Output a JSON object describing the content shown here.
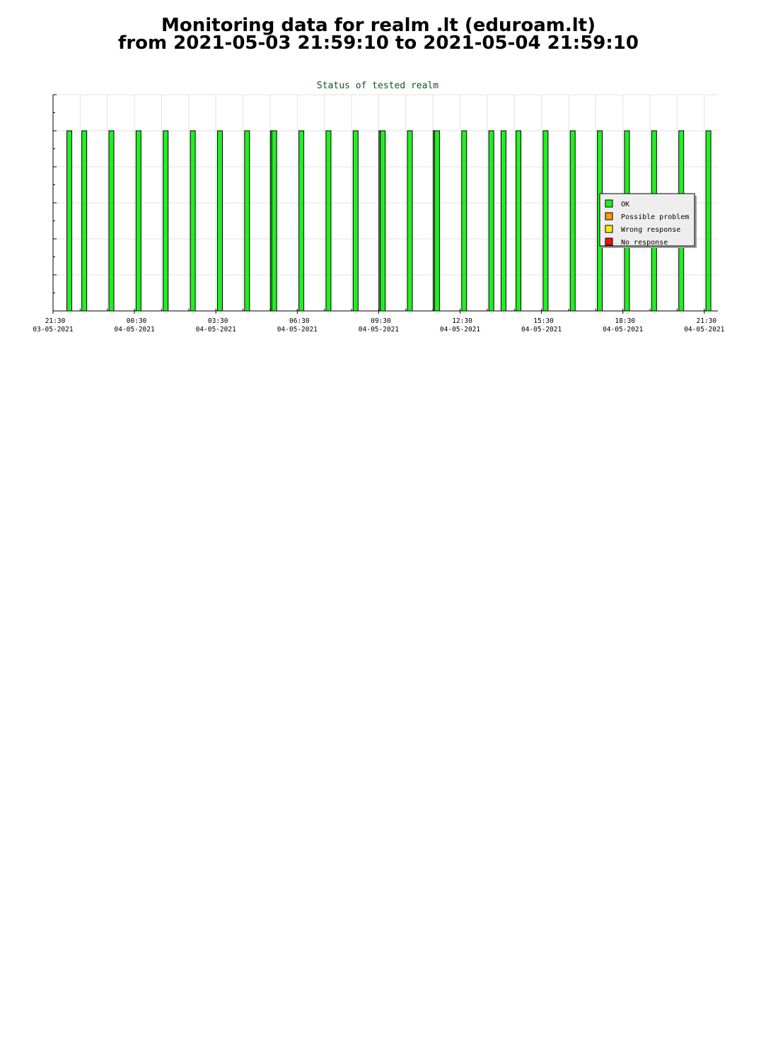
{
  "page": {
    "title_line1": "Monitoring data for realm .lt  (eduroam.lt)",
    "title_line2": "from 2021-05-03 21:59:10 to 2021-05-04 21:59:10"
  },
  "chart_data": {
    "type": "bar",
    "title": "Status of tested realm",
    "xlabel": "",
    "ylabel": "",
    "x_unit": "hours since 2021-05-03 21:30",
    "xlim": [
      0,
      24.5
    ],
    "ylim": [
      0,
      6
    ],
    "grid": true,
    "x_ticks": [
      {
        "x": 0,
        "time": "21:30",
        "date": "03-05-2021"
      },
      {
        "x": 3,
        "time": "00:30",
        "date": "04-05-2021"
      },
      {
        "x": 6,
        "time": "03:30",
        "date": "04-05-2021"
      },
      {
        "x": 9,
        "time": "06:30",
        "date": "04-05-2021"
      },
      {
        "x": 12,
        "time": "09:30",
        "date": "04-05-2021"
      },
      {
        "x": 15,
        "time": "12:30",
        "date": "04-05-2021"
      },
      {
        "x": 18,
        "time": "15:30",
        "date": "04-05-2021"
      },
      {
        "x": 21,
        "time": "18:30",
        "date": "04-05-2021"
      },
      {
        "x": 24,
        "time": "21:30",
        "date": "04-05-2021"
      }
    ],
    "series": [
      {
        "name": "OK",
        "color": "#22ee22",
        "bars": [
          {
            "x": 0.6,
            "value": 5
          },
          {
            "x": 1.15,
            "value": 5
          },
          {
            "x": 2.15,
            "value": 5
          },
          {
            "x": 3.15,
            "value": 5
          },
          {
            "x": 4.15,
            "value": 5
          },
          {
            "x": 5.15,
            "value": 5
          },
          {
            "x": 6.15,
            "value": 5
          },
          {
            "x": 7.15,
            "value": 5
          },
          {
            "x": 8.1,
            "value": 5
          },
          {
            "x": 8.15,
            "value": 5
          },
          {
            "x": 9.15,
            "value": 5
          },
          {
            "x": 10.15,
            "value": 5
          },
          {
            "x": 11.15,
            "value": 5
          },
          {
            "x": 12.1,
            "value": 5
          },
          {
            "x": 12.15,
            "value": 5
          },
          {
            "x": 13.15,
            "value": 5
          },
          {
            "x": 14.1,
            "value": 5
          },
          {
            "x": 14.15,
            "value": 5
          },
          {
            "x": 15.15,
            "value": 5
          },
          {
            "x": 16.15,
            "value": 5
          },
          {
            "x": 16.6,
            "value": 5
          },
          {
            "x": 17.15,
            "value": 5
          },
          {
            "x": 18.15,
            "value": 5
          },
          {
            "x": 19.15,
            "value": 5
          },
          {
            "x": 20.15,
            "value": 5
          },
          {
            "x": 21.15,
            "value": 5
          },
          {
            "x": 22.15,
            "value": 5
          },
          {
            "x": 23.15,
            "value": 5
          },
          {
            "x": 24.15,
            "value": 5
          }
        ]
      },
      {
        "name": "Possible problem",
        "color": "#ff9900",
        "bars": []
      },
      {
        "name": "Wrong response",
        "color": "#ffee00",
        "bars": []
      },
      {
        "name": "No response",
        "color": "#ee1111",
        "bars": []
      }
    ],
    "legend_position": "right"
  }
}
